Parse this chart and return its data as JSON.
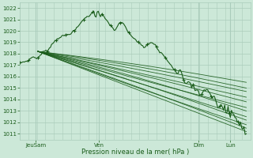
{
  "xlabel": "Pression niveau de la mer( hPa )",
  "bg_color": "#cce8d8",
  "grid_color": "#aaccbb",
  "line_color": "#1a5c1a",
  "tick_label_color": "#1a5c1a",
  "axis_label_color": "#1a5c1a",
  "ylim": [
    1010.5,
    1022.5
  ],
  "yticks": [
    1011,
    1012,
    1013,
    1014,
    1015,
    1016,
    1017,
    1018,
    1019,
    1020,
    1021,
    1022
  ],
  "xtick_labels": [
    "JeuSam",
    "Ven",
    "Dim",
    "Lun"
  ],
  "xtick_positions": [
    0.07,
    0.35,
    0.79,
    0.93
  ],
  "xlim": [
    0.0,
    1.02
  ]
}
